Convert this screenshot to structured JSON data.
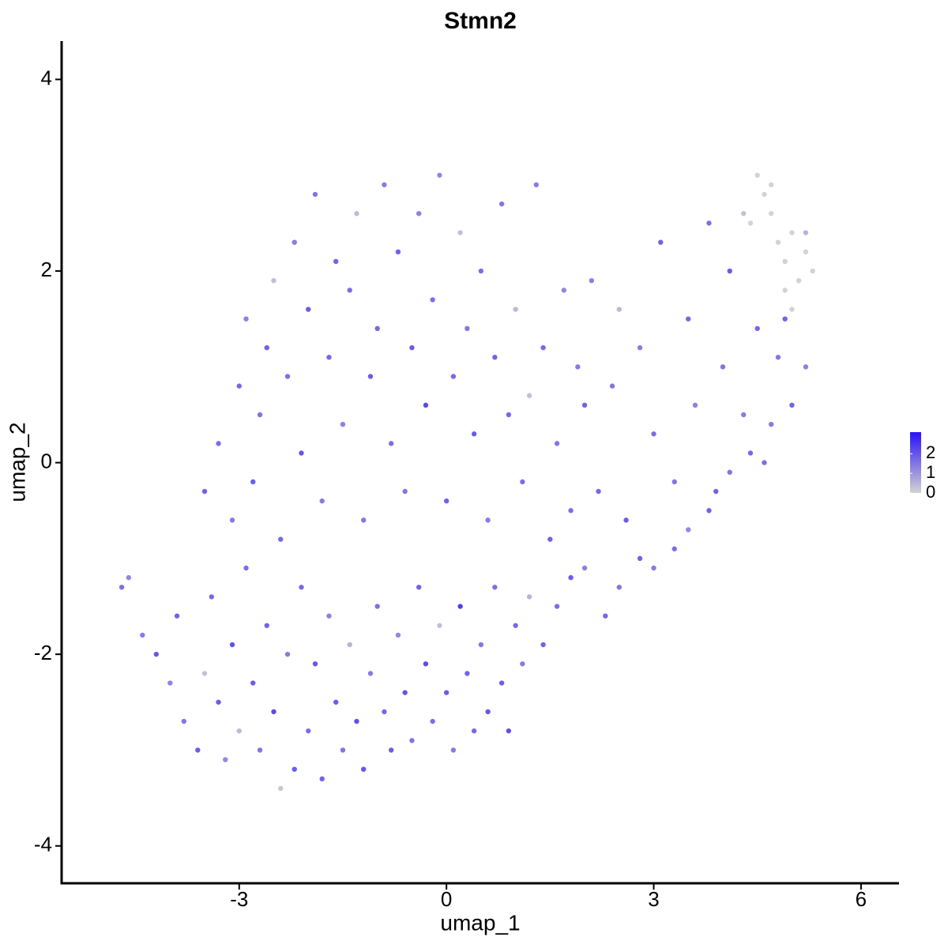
{
  "chart_data": {
    "type": "scatter",
    "title": "Stmn2",
    "x_label": "umap_1",
    "y_label": "umap_2",
    "xlim": [
      -5.57,
      6.55
    ],
    "xticks": [
      -3,
      0,
      3,
      6
    ],
    "ylim": [
      -4.39,
      4.4
    ],
    "yticks": [
      4,
      2,
      0,
      -2,
      -4
    ],
    "color_low": "#d3d3d3",
    "color_high": "#2a12f5",
    "color_lim": [
      0,
      3.1
    ],
    "color_ticks": [
      2,
      1,
      0
    ],
    "x": [
      -4.7,
      -4.6,
      -4.4,
      -4.2,
      -4.0,
      -3.9,
      -3.8,
      -3.6,
      -3.5,
      -3.4,
      -3.3,
      -3.2,
      -3.1,
      -3.0,
      -2.9,
      -2.8,
      -2.7,
      -2.6,
      -2.5,
      -2.4,
      -2.3,
      -2.2,
      -2.1,
      -2.0,
      -1.9,
      -1.8,
      -1.7,
      -1.6,
      -1.5,
      -1.4,
      -1.3,
      -1.2,
      -1.1,
      -1.0,
      -0.9,
      -0.8,
      -0.7,
      -0.6,
      -0.5,
      -0.4,
      -0.3,
      -0.2,
      -0.1,
      0.0,
      0.1,
      0.2,
      0.3,
      0.4,
      0.5,
      0.6,
      0.7,
      0.8,
      0.9,
      1.0,
      1.1,
      1.2,
      1.4,
      1.6,
      1.8,
      2.0,
      2.3,
      2.5,
      2.8,
      3.0,
      3.3,
      3.5,
      3.8,
      4.1,
      4.4,
      4.7,
      5.0,
      5.2,
      -3.5,
      -3.3,
      -3.1,
      -3.0,
      -2.9,
      -2.8,
      -2.7,
      -2.6,
      -2.5,
      -2.4,
      -2.3,
      -2.2,
      -2.1,
      -2.0,
      -1.9,
      -1.8,
      -1.7,
      -1.6,
      -1.5,
      -1.4,
      -1.3,
      -1.2,
      -1.1,
      -1.0,
      -0.9,
      -0.8,
      -0.7,
      -0.6,
      -0.5,
      -0.4,
      -0.3,
      -0.2,
      -0.1,
      0.0,
      0.1,
      0.2,
      0.3,
      0.4,
      0.5,
      0.6,
      0.7,
      0.8,
      0.9,
      1.0,
      1.1,
      1.2,
      1.3,
      1.4,
      1.5,
      1.6,
      1.7,
      1.8,
      1.9,
      2.0,
      2.1,
      2.2,
      2.4,
      2.5,
      2.6,
      2.8,
      3.0,
      3.1,
      3.3,
      3.5,
      3.6,
      3.8,
      3.9,
      4.0,
      4.1,
      4.3,
      4.5,
      4.6,
      4.8,
      4.9,
      4.4,
      4.5,
      4.6,
      4.7,
      4.8,
      4.9,
      5.0,
      5.1,
      5.2,
      5.3,
      4.9,
      5.0,
      4.7,
      5.2,
      4.3
    ],
    "y": [
      -1.3,
      -1.2,
      -1.8,
      -2.0,
      -2.3,
      -1.6,
      -2.7,
      -3.0,
      -2.2,
      -1.4,
      -2.5,
      -3.1,
      -1.9,
      -2.8,
      -1.1,
      -2.3,
      -3.0,
      -1.7,
      -2.6,
      -3.4,
      -2.0,
      -3.2,
      -1.3,
      -2.8,
      -2.1,
      -3.3,
      -1.6,
      -2.5,
      -3.0,
      -1.9,
      -2.7,
      -3.2,
      -2.2,
      -1.5,
      -2.6,
      -3.0,
      -1.8,
      -2.4,
      -2.9,
      -1.3,
      -2.1,
      -2.7,
      -1.7,
      -2.4,
      -3.0,
      -1.5,
      -2.2,
      -2.8,
      -1.9,
      -2.6,
      -1.3,
      -2.3,
      -2.8,
      -1.7,
      -2.1,
      -1.4,
      -1.9,
      -1.5,
      -1.2,
      -1.1,
      -1.6,
      -1.3,
      -1.0,
      -1.1,
      -0.9,
      -0.7,
      -0.5,
      -0.1,
      0.1,
      0.4,
      0.6,
      1.0,
      -0.3,
      0.2,
      -0.6,
      0.8,
      1.5,
      -0.2,
      0.5,
      1.2,
      1.9,
      -0.8,
      0.9,
      2.3,
      0.1,
      1.6,
      2.8,
      -0.4,
      1.1,
      2.1,
      0.4,
      1.8,
      2.6,
      -0.6,
      0.9,
      1.4,
      2.9,
      0.2,
      2.2,
      -0.3,
      1.2,
      2.6,
      0.6,
      1.7,
      3.0,
      -0.4,
      0.9,
      2.4,
      1.4,
      0.3,
      2.0,
      -0.6,
      1.1,
      2.7,
      0.5,
      1.6,
      -0.2,
      0.7,
      2.9,
      1.2,
      -0.8,
      0.2,
      1.8,
      -0.5,
      1.0,
      0.6,
      1.9,
      -0.3,
      0.8,
      1.6,
      -0.6,
      1.2,
      0.3,
      2.3,
      -0.2,
      1.5,
      0.6,
      2.5,
      -0.3,
      1.0,
      2.0,
      0.5,
      1.4,
      0.0,
      1.1,
      1.5,
      2.5,
      3.0,
      2.8,
      2.6,
      2.3,
      2.1,
      2.4,
      1.9,
      2.2,
      2.0,
      1.8,
      1.6,
      2.9,
      2.4,
      2.6
    ],
    "values": [
      1.6,
      1.2,
      1.4,
      2.0,
      1.3,
      1.8,
      1.5,
      1.9,
      0.3,
      1.7,
      1.9,
      1.2,
      2.1,
      0.4,
      1.6,
      1.9,
      1.5,
      1.8,
      2.2,
      0.2,
      1.4,
      1.9,
      1.7,
      1.6,
      2.0,
      1.8,
      1.3,
      1.9,
      1.5,
      0.5,
      2.1,
      2.0,
      1.4,
      1.6,
      1.7,
      1.9,
      1.2,
      2.0,
      1.5,
      1.8,
      2.2,
      1.6,
      0.3,
      1.9,
      1.4,
      2.4,
      1.8,
      1.7,
      1.5,
      2.0,
      1.6,
      1.9,
      2.1,
      1.7,
      1.4,
      0.5,
      1.8,
      1.6,
      1.9,
      1.3,
      1.7,
      1.5,
      1.8,
      1.4,
      1.6,
      1.2,
      1.8,
      1.5,
      1.7,
      1.4,
      1.8,
      1.3,
      1.8,
      1.6,
      1.4,
      1.7,
      1.3,
      1.9,
      1.5,
      1.8,
      0.3,
      1.7,
      1.6,
      1.4,
      2.0,
      1.9,
      1.5,
      1.4,
      1.7,
      1.8,
      1.3,
      1.6,
      0.4,
      1.5,
      1.9,
      1.7,
      1.4,
      1.6,
      1.8,
      1.5,
      1.9,
      1.3,
      2.2,
      1.6,
      1.2,
      1.8,
      1.7,
      0.3,
      1.5,
      1.9,
      1.6,
      1.4,
      1.8,
      1.5,
      1.7,
      0.4,
      1.6,
      0.3,
      1.4,
      1.7,
      1.8,
      1.5,
      1.2,
      1.6,
      1.4,
      1.8,
      1.3,
      1.7,
      1.5,
      0.4,
      1.9,
      1.4,
      1.6,
      1.8,
      1.5,
      1.7,
      1.3,
      1.6,
      1.8,
      1.5,
      1.9,
      1.4,
      1.7,
      1.6,
      1.5,
      1.8,
      0,
      0,
      0,
      0,
      0,
      0,
      0,
      0,
      0,
      0,
      0,
      0,
      0,
      0.5,
      0.3
    ]
  }
}
